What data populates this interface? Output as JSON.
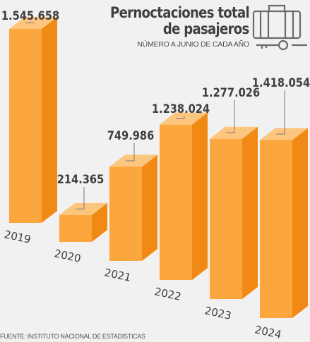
{
  "title_line1": "Pernoctaciones total",
  "title_line2": "de pasajeros",
  "subtitle": "NÚMERO A JUNIO DE CADA AÑO",
  "source": "FUENTE: INSTITUTO NACIONAL DE ESTADÍSTICAS",
  "colors": {
    "bar_front": "#fba73e",
    "bar_top": "#fcc67e",
    "bar_side": "#f08a14",
    "text": "#3f3f3f",
    "background": "#f1f1f1"
  },
  "icon": "suitcase-key-icon",
  "chart_data": {
    "type": "bar",
    "title": "Pernoctaciones total de pasajeros",
    "subtitle": "NÚMERO A JUNIO DE CADA AÑO",
    "categories": [
      "2019",
      "2020",
      "2021",
      "2022",
      "2023",
      "2024"
    ],
    "values": [
      1545658,
      214365,
      749986,
      1238024,
      1277026,
      1418054
    ],
    "labels": [
      "1.545.658",
      "214.365",
      "749.986",
      "1.238.024",
      "1.277.026",
      "1.418.054"
    ]
  }
}
